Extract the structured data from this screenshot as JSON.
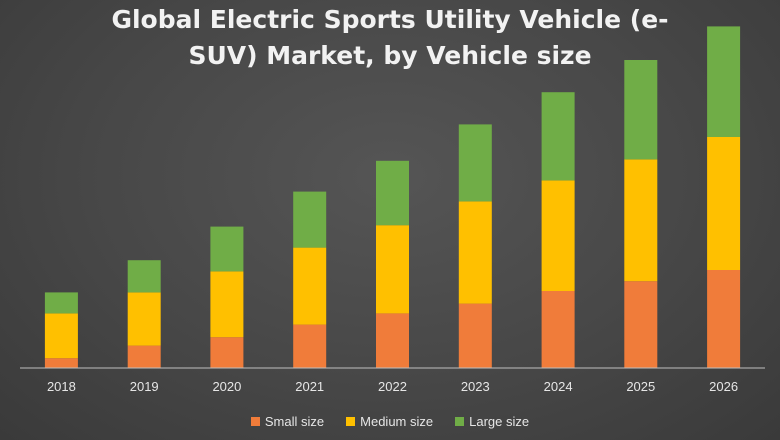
{
  "chart_data": {
    "type": "bar",
    "stacked": true,
    "title_lines": [
      "Global Electric Sports Utility Vehicle (e-",
      "SUV) Market, by Vehicle size"
    ],
    "categories": [
      "2018",
      "2019",
      "2020",
      "2021",
      "2022",
      "2023",
      "2024",
      "2025",
      "2026"
    ],
    "series": [
      {
        "name": "Small size",
        "color": "#f07c3a",
        "values": [
          7,
          16,
          22,
          31,
          39,
          46,
          55,
          62,
          70
        ]
      },
      {
        "name": "Medium size",
        "color": "#ffc000",
        "values": [
          32,
          38,
          47,
          55,
          63,
          73,
          79,
          87,
          95
        ]
      },
      {
        "name": "Large size",
        "color": "#70ad47",
        "values": [
          15,
          23,
          32,
          40,
          46,
          55,
          63,
          71,
          79
        ]
      }
    ],
    "ylim": [
      0,
      250
    ],
    "grid": false,
    "legend_position": "bottom"
  }
}
